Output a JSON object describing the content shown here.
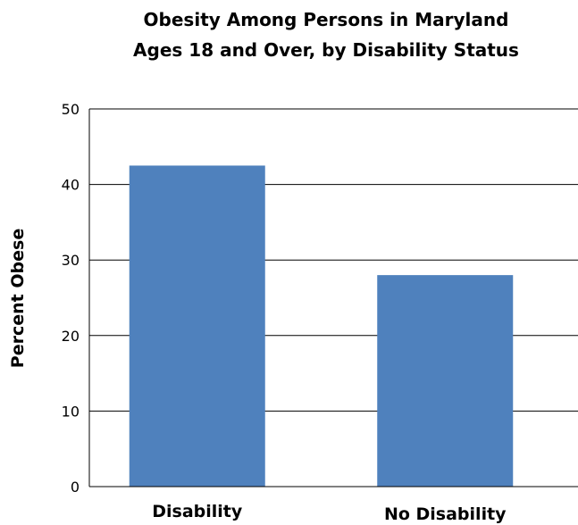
{
  "chart_data": {
    "type": "bar",
    "title": [
      "Obesity Among Persons in Maryland",
      "Ages 18 and Over, by Disability Status"
    ],
    "xlabel": "",
    "ylabel": "Percent Obese",
    "categories": [
      "Disability",
      "No Disability"
    ],
    "values": [
      42.5,
      28.0
    ],
    "ylim": [
      0,
      50
    ],
    "yticks": [
      0,
      10,
      20,
      30,
      40,
      50
    ],
    "grid": true,
    "bar_color": "#4f81bd"
  }
}
